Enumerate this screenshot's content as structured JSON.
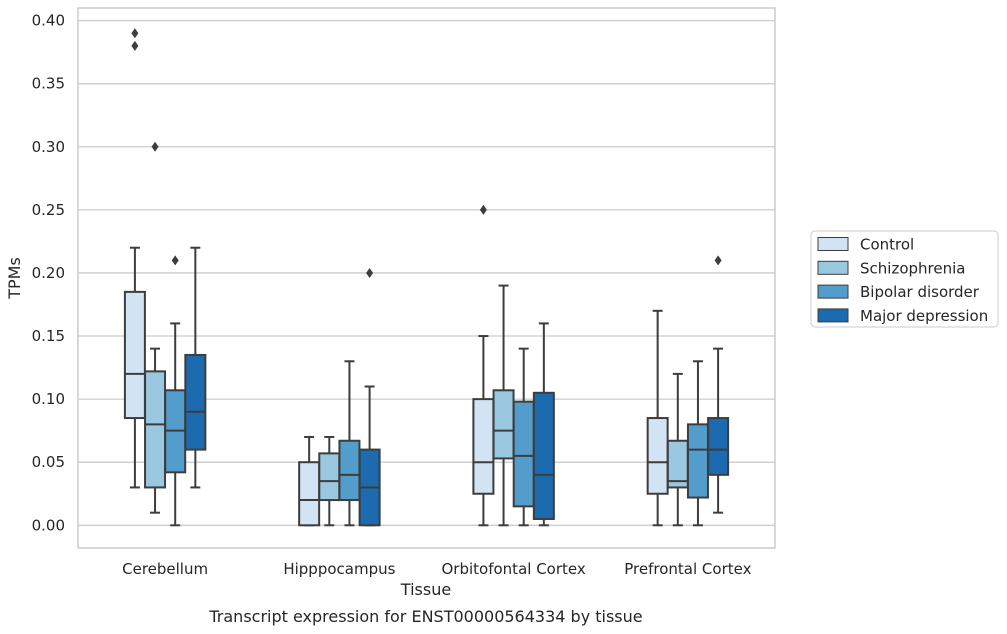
{
  "chart_data": {
    "type": "boxplot",
    "caption": "Transcript expression for ENST00000564334 by tissue",
    "xlabel": "Tissue",
    "ylabel": "TPMs",
    "ylim": [
      -0.018,
      0.41
    ],
    "yticks": [
      "0.00",
      "0.05",
      "0.10",
      "0.15",
      "0.20",
      "0.25",
      "0.30",
      "0.35",
      "0.40"
    ],
    "grid": true,
    "legend_position": "right",
    "categories": [
      "Cerebellum",
      "Hipppocampus",
      "Orbitofontal Cortex",
      "Prefrontal Cortex"
    ],
    "series": [
      {
        "name": "Control",
        "color": "#d2e3f3",
        "boxes": [
          {
            "whisker_low": 0.03,
            "q1": 0.085,
            "median": 0.12,
            "q3": 0.185,
            "whisker_high": 0.22,
            "outliers": [
              0.38,
              0.39
            ]
          },
          {
            "whisker_low": 0.0,
            "q1": 0.0,
            "median": 0.02,
            "q3": 0.05,
            "whisker_high": 0.07,
            "outliers": []
          },
          {
            "whisker_low": 0.0,
            "q1": 0.025,
            "median": 0.05,
            "q3": 0.1,
            "whisker_high": 0.15,
            "outliers": [
              0.25
            ]
          },
          {
            "whisker_low": 0.0,
            "q1": 0.025,
            "median": 0.05,
            "q3": 0.085,
            "whisker_high": 0.17,
            "outliers": []
          }
        ]
      },
      {
        "name": "Schizophrenia",
        "color": "#9ac8e0",
        "boxes": [
          {
            "whisker_low": 0.01,
            "q1": 0.03,
            "median": 0.08,
            "q3": 0.122,
            "whisker_high": 0.14,
            "outliers": [
              0.3
            ]
          },
          {
            "whisker_low": 0.0,
            "q1": 0.02,
            "median": 0.035,
            "q3": 0.057,
            "whisker_high": 0.07,
            "outliers": []
          },
          {
            "whisker_low": 0.0,
            "q1": 0.053,
            "median": 0.075,
            "q3": 0.107,
            "whisker_high": 0.19,
            "outliers": []
          },
          {
            "whisker_low": 0.0,
            "q1": 0.03,
            "median": 0.035,
            "q3": 0.067,
            "whisker_high": 0.12,
            "outliers": []
          }
        ]
      },
      {
        "name": "Bipolar disorder",
        "color": "#529dcc",
        "boxes": [
          {
            "whisker_low": 0.0,
            "q1": 0.042,
            "median": 0.075,
            "q3": 0.107,
            "whisker_high": 0.16,
            "outliers": [
              0.21
            ]
          },
          {
            "whisker_low": 0.0,
            "q1": 0.02,
            "median": 0.04,
            "q3": 0.067,
            "whisker_high": 0.13,
            "outliers": []
          },
          {
            "whisker_low": 0.0,
            "q1": 0.015,
            "median": 0.055,
            "q3": 0.098,
            "whisker_high": 0.14,
            "outliers": []
          },
          {
            "whisker_low": 0.0,
            "q1": 0.022,
            "median": 0.06,
            "q3": 0.08,
            "whisker_high": 0.13,
            "outliers": []
          }
        ]
      },
      {
        "name": "Major depression",
        "color": "#1c6aaf",
        "boxes": [
          {
            "whisker_low": 0.03,
            "q1": 0.06,
            "median": 0.09,
            "q3": 0.135,
            "whisker_high": 0.22,
            "outliers": []
          },
          {
            "whisker_low": 0.0,
            "q1": 0.0,
            "median": 0.03,
            "q3": 0.06,
            "whisker_high": 0.11,
            "outliers": [
              0.2
            ]
          },
          {
            "whisker_low": 0.0,
            "q1": 0.005,
            "median": 0.04,
            "q3": 0.105,
            "whisker_high": 0.16,
            "outliers": []
          },
          {
            "whisker_low": 0.01,
            "q1": 0.04,
            "median": 0.06,
            "q3": 0.085,
            "whisker_high": 0.14,
            "outliers": [
              0.21
            ]
          }
        ]
      }
    ]
  }
}
